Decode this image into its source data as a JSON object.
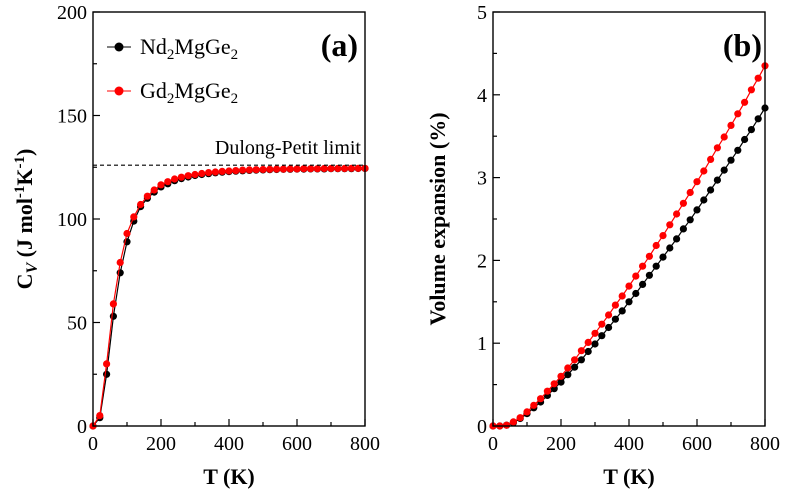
{
  "chart_data": [
    {
      "type": "line",
      "panel": "(a)",
      "xlabel": "T (K)",
      "ylabel": {
        "main": "C",
        "sub": "V",
        "rest": " (J mol",
        "sup1": "-1",
        "mid": "K",
        "sup2": "-1",
        "end": ")"
      },
      "xlim": [
        0,
        800
      ],
      "ylim": [
        0,
        200
      ],
      "xticks": [
        "0",
        "200",
        "400",
        "600",
        "800"
      ],
      "yticks": [
        "0",
        "50",
        "100",
        "150",
        "200"
      ],
      "annotation": {
        "text": "Dulong-Petit limit",
        "y": 126
      },
      "legend": [
        {
          "name": "Nd",
          "sub1": "2",
          "mid": "MgGe",
          "sub2": "2",
          "color": "#000000"
        },
        {
          "name": "Gd",
          "sub1": "2",
          "mid": "MgGe",
          "sub2": "2",
          "color": "#ff0000"
        }
      ],
      "series": [
        {
          "name": "Nd2MgGe2",
          "color": "#000000",
          "x": [
            0,
            20,
            40,
            60,
            80,
            100,
            120,
            140,
            160,
            180,
            200,
            220,
            240,
            260,
            280,
            300,
            320,
            340,
            360,
            380,
            400,
            420,
            440,
            460,
            480,
            500,
            520,
            540,
            560,
            580,
            600,
            620,
            640,
            660,
            680,
            700,
            720,
            740,
            760,
            780,
            800
          ],
          "y": [
            0,
            4,
            25,
            53,
            74,
            89,
            99,
            106,
            110,
            113,
            115.5,
            117,
            118.5,
            119.5,
            120.3,
            121,
            121.5,
            121.9,
            122.3,
            122.6,
            122.9,
            123.1,
            123.3,
            123.5,
            123.6,
            123.7,
            123.8,
            123.9,
            124,
            124,
            124.1,
            124.1,
            124.2,
            124.2,
            124.2,
            124.3,
            124.3,
            124.3,
            124.3,
            124.4,
            124.4
          ]
        },
        {
          "name": "Gd2MgGe2",
          "color": "#ff0000",
          "x": [
            0,
            20,
            40,
            60,
            80,
            100,
            120,
            140,
            160,
            180,
            200,
            220,
            240,
            260,
            280,
            300,
            320,
            340,
            360,
            380,
            400,
            420,
            440,
            460,
            480,
            500,
            520,
            540,
            560,
            580,
            600,
            620,
            640,
            660,
            680,
            700,
            720,
            740,
            760,
            780,
            800
          ],
          "y": [
            0,
            5,
            30,
            59,
            79,
            93,
            101,
            107,
            111,
            114,
            116.5,
            118,
            119.3,
            120.2,
            120.9,
            121.5,
            122,
            122.4,
            122.7,
            123,
            123.2,
            123.4,
            123.6,
            123.7,
            123.8,
            123.9,
            124,
            124.1,
            124.1,
            124.2,
            124.2,
            124.3,
            124.3,
            124.3,
            124.4,
            124.4,
            124.4,
            124.4,
            124.5,
            124.5,
            124.5
          ]
        }
      ]
    },
    {
      "type": "line",
      "panel": "(b)",
      "xlabel": "T (K)",
      "ylabel": "Volume expansion (%)",
      "xlim": [
        0,
        800
      ],
      "ylim": [
        0,
        5
      ],
      "xticks": [
        "0",
        "200",
        "400",
        "600",
        "800"
      ],
      "yticks": [
        "0",
        "1",
        "2",
        "3",
        "4",
        "5"
      ],
      "series": [
        {
          "name": "Nd2MgGe2",
          "color": "#000000",
          "x": [
            0,
            20,
            40,
            60,
            80,
            100,
            120,
            140,
            160,
            180,
            200,
            220,
            240,
            260,
            280,
            300,
            320,
            340,
            360,
            380,
            400,
            420,
            440,
            460,
            480,
            500,
            520,
            540,
            560,
            580,
            600,
            620,
            640,
            660,
            680,
            700,
            720,
            740,
            760,
            780,
            800
          ],
          "y": [
            0,
            0,
            0.01,
            0.04,
            0.09,
            0.15,
            0.22,
            0.29,
            0.37,
            0.45,
            0.53,
            0.62,
            0.71,
            0.8,
            0.9,
            0.99,
            1.09,
            1.19,
            1.29,
            1.39,
            1.5,
            1.6,
            1.71,
            1.82,
            1.93,
            2.04,
            2.15,
            2.26,
            2.38,
            2.49,
            2.61,
            2.73,
            2.85,
            2.97,
            3.09,
            3.21,
            3.33,
            3.46,
            3.58,
            3.71,
            3.84
          ]
        },
        {
          "name": "Gd2MgGe2",
          "color": "#ff0000",
          "x": [
            0,
            20,
            40,
            60,
            80,
            100,
            120,
            140,
            160,
            180,
            200,
            220,
            240,
            260,
            280,
            300,
            320,
            340,
            360,
            380,
            400,
            420,
            440,
            460,
            480,
            500,
            520,
            540,
            560,
            580,
            600,
            620,
            640,
            660,
            680,
            700,
            720,
            740,
            760,
            780,
            800
          ],
          "y": [
            0,
            0,
            0.01,
            0.05,
            0.1,
            0.17,
            0.25,
            0.33,
            0.42,
            0.51,
            0.6,
            0.7,
            0.8,
            0.91,
            1.01,
            1.12,
            1.23,
            1.34,
            1.46,
            1.57,
            1.69,
            1.81,
            1.93,
            2.05,
            2.18,
            2.3,
            2.43,
            2.56,
            2.69,
            2.82,
            2.95,
            3.08,
            3.22,
            3.36,
            3.49,
            3.63,
            3.77,
            3.91,
            4.06,
            4.2,
            4.35
          ]
        }
      ]
    }
  ]
}
